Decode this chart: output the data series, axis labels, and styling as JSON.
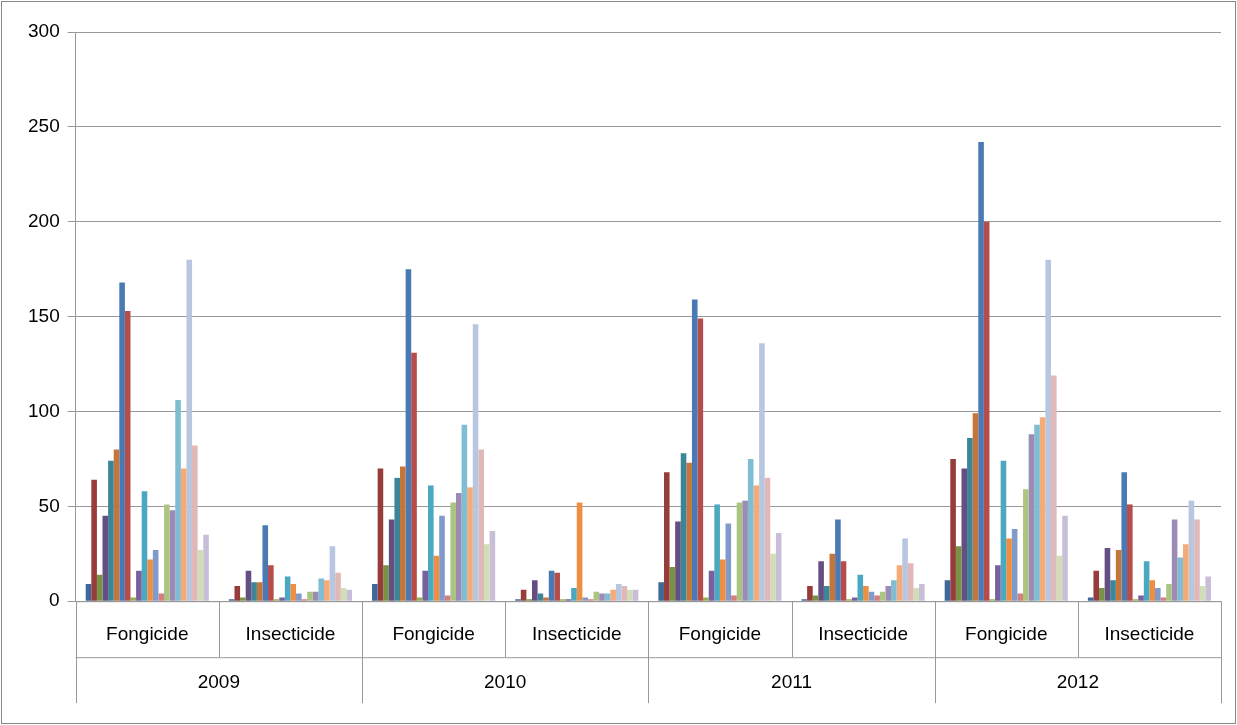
{
  "chart_data": {
    "type": "bar",
    "categories": [
      "Fongicide",
      "Insecticide",
      "Fongicide",
      "Insecticide",
      "Fongicide",
      "Insecticide",
      "Fongicide",
      "Insecticide"
    ],
    "annotations": [
      "2009",
      "2010",
      "2011",
      "2012"
    ],
    "ylim": [
      0,
      300
    ],
    "yticks": [
      0,
      50,
      100,
      150,
      200,
      250,
      300
    ],
    "grid": "y",
    "legend": false,
    "series": [
      {
        "color": "#3f6797",
        "values": [
          9,
          1,
          9,
          1,
          10,
          1,
          11,
          2
        ]
      },
      {
        "color": "#963c3a",
        "values": [
          64,
          8,
          70,
          6,
          68,
          8,
          75,
          16
        ]
      },
      {
        "color": "#7a9243",
        "values": [
          14,
          2,
          19,
          1,
          18,
          3,
          29,
          7
        ]
      },
      {
        "color": "#654f82",
        "values": [
          45,
          16,
          43,
          11,
          42,
          21,
          70,
          28
        ]
      },
      {
        "color": "#3b8597",
        "values": [
          74,
          10,
          65,
          4,
          78,
          8,
          86,
          11
        ]
      },
      {
        "color": "#c6753a",
        "values": [
          80,
          10,
          71,
          2,
          73,
          25,
          99,
          27
        ]
      },
      {
        "color": "#4a7ab4",
        "values": [
          168,
          40,
          175,
          16,
          159,
          43,
          242,
          68
        ]
      },
      {
        "color": "#b64d4a",
        "values": [
          153,
          19,
          131,
          15,
          149,
          21,
          200,
          51
        ]
      },
      {
        "color": "#92b050",
        "values": [
          2,
          1,
          2,
          1,
          2,
          1,
          1,
          1
        ]
      },
      {
        "color": "#7a5f9e",
        "values": [
          16,
          2,
          16,
          1,
          16,
          2,
          19,
          3
        ]
      },
      {
        "color": "#4aa8c1",
        "values": [
          58,
          13,
          61,
          7,
          51,
          14,
          74,
          21
        ]
      },
      {
        "color": "#ee8e41",
        "values": [
          22,
          9,
          24,
          52,
          22,
          8,
          33,
          11
        ]
      },
      {
        "color": "#7f9acb",
        "values": [
          27,
          4,
          45,
          2,
          41,
          5,
          38,
          7
        ]
      },
      {
        "color": "#d27f7d",
        "values": [
          4,
          1,
          3,
          1,
          3,
          3,
          4,
          2
        ]
      },
      {
        "color": "#abc482",
        "values": [
          51,
          5,
          52,
          5,
          52,
          5,
          59,
          9
        ]
      },
      {
        "color": "#9b8bb5",
        "values": [
          48,
          5,
          57,
          4,
          53,
          8,
          88,
          43
        ]
      },
      {
        "color": "#7fbdd2",
        "values": [
          106,
          12,
          93,
          4,
          75,
          11,
          93,
          23
        ]
      },
      {
        "color": "#f5ab78",
        "values": [
          70,
          11,
          60,
          6,
          61,
          19,
          97,
          30
        ]
      },
      {
        "color": "#b8c6e0",
        "values": [
          180,
          29,
          146,
          9,
          136,
          33,
          180,
          53
        ]
      },
      {
        "color": "#e0b8b7",
        "values": [
          82,
          15,
          80,
          8,
          65,
          20,
          119,
          43
        ]
      },
      {
        "color": "#d0ddb7",
        "values": [
          27,
          7,
          30,
          6,
          25,
          7,
          24,
          8
        ]
      },
      {
        "color": "#c8bed8",
        "values": [
          35,
          6,
          37,
          6,
          36,
          9,
          45,
          13
        ]
      }
    ]
  }
}
